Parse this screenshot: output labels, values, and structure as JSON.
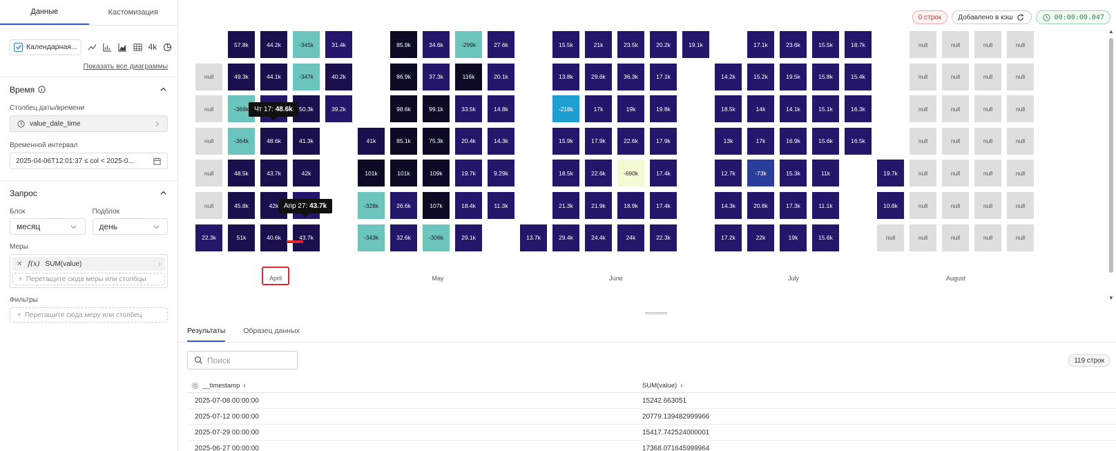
{
  "left": {
    "tabs": [
      "Данные",
      "Кастомизация"
    ],
    "chart_type_label": "Календарная...",
    "chart_icons": [
      "line-chart-icon",
      "bar-chart-icon",
      "area-chart-icon",
      "table-icon",
      "big-number-icon",
      "pie-chart-icon"
    ],
    "big_number_label": "4k",
    "show_all": "Показать все диаграммы",
    "time_section": "Время",
    "date_col_label": "Столбец даты/времени",
    "date_col_value": "value_date_time",
    "interval_label": "Временной интервал",
    "interval_value": "2025-04-06T12:01:37 ≤ col < 2025-0...",
    "query_section": "Запрос",
    "block_label": "Блок",
    "block_value": "месяц",
    "subblock_label": "Подблок",
    "subblock_value": "день",
    "measures_label": "Меры",
    "measure_item": "SUM(value)",
    "measure_fx": "f(x)",
    "measure_drop": "Перетащите сюда меры или столбцы",
    "filters_label": "Фильтры",
    "filters_drop": "Перетащите сюда меру или столбец"
  },
  "badges": {
    "rows": "0 строк",
    "cache": "Добавлено в кэш",
    "timer": "00:00:00.047"
  },
  "tooltips": [
    {
      "label": "Чт 17:",
      "value": "48.6k"
    },
    {
      "label": "Апр 27:",
      "value": "43.7k"
    }
  ],
  "chart_data": {
    "type": "heatmap",
    "months": [
      "April",
      "May",
      "June",
      "July",
      "August"
    ],
    "cells": [
      {
        "c": 1,
        "r": 0,
        "v": "57.8k"
      },
      {
        "c": 2,
        "r": 0,
        "v": "44.2k"
      },
      {
        "c": 3,
        "r": 0,
        "v": "-345k"
      },
      {
        "c": 4,
        "r": 0,
        "v": "31.4k"
      },
      {
        "c": 0,
        "r": 1,
        "v": "null"
      },
      {
        "c": 1,
        "r": 1,
        "v": "49.3k"
      },
      {
        "c": 2,
        "r": 1,
        "v": "44.1k"
      },
      {
        "c": 3,
        "r": 1,
        "v": "-347k"
      },
      {
        "c": 4,
        "r": 1,
        "v": "40.2k"
      },
      {
        "c": 0,
        "r": 2,
        "v": "null"
      },
      {
        "c": 1,
        "r": 2,
        "v": "-369k"
      },
      {
        "c": 2,
        "r": 2,
        "v": ""
      },
      {
        "c": 3,
        "r": 2,
        "v": "50.3k"
      },
      {
        "c": 4,
        "r": 2,
        "v": "39.2k"
      },
      {
        "c": 0,
        "r": 3,
        "v": "null"
      },
      {
        "c": 1,
        "r": 3,
        "v": "-364k"
      },
      {
        "c": 2,
        "r": 3,
        "v": "48.6k"
      },
      {
        "c": 3,
        "r": 3,
        "v": "41.3k"
      },
      {
        "c": 0,
        "r": 4,
        "v": "null"
      },
      {
        "c": 1,
        "r": 4,
        "v": "48.5k"
      },
      {
        "c": 2,
        "r": 4,
        "v": "43.7k"
      },
      {
        "c": 3,
        "r": 4,
        "v": "42k"
      },
      {
        "c": 0,
        "r": 5,
        "v": "null"
      },
      {
        "c": 1,
        "r": 5,
        "v": "45.8k"
      },
      {
        "c": 2,
        "r": 5,
        "v": "42k"
      },
      {
        "c": 3,
        "r": 5,
        "v": ""
      },
      {
        "c": 0,
        "r": 6,
        "v": "22.3k"
      },
      {
        "c": 1,
        "r": 6,
        "v": "51k"
      },
      {
        "c": 2,
        "r": 6,
        "v": "40.6k"
      },
      {
        "c": 3,
        "r": 6,
        "v": "43.7k"
      },
      {
        "c": 6,
        "r": 0,
        "v": "85.9k"
      },
      {
        "c": 7,
        "r": 0,
        "v": "34.6k"
      },
      {
        "c": 8,
        "r": 0,
        "v": "-299k"
      },
      {
        "c": 9,
        "r": 0,
        "v": "27.6k"
      },
      {
        "c": 6,
        "r": 1,
        "v": "86.9k"
      },
      {
        "c": 7,
        "r": 1,
        "v": "37.3k"
      },
      {
        "c": 8,
        "r": 1,
        "v": "116k"
      },
      {
        "c": 9,
        "r": 1,
        "v": "20.1k"
      },
      {
        "c": 6,
        "r": 2,
        "v": "98.6k"
      },
      {
        "c": 7,
        "r": 2,
        "v": "99.1k"
      },
      {
        "c": 8,
        "r": 2,
        "v": "33.5k"
      },
      {
        "c": 9,
        "r": 2,
        "v": "14.8k"
      },
      {
        "c": 5,
        "r": 3,
        "v": "41k"
      },
      {
        "c": 6,
        "r": 3,
        "v": "85.1k"
      },
      {
        "c": 7,
        "r": 3,
        "v": "75.3k"
      },
      {
        "c": 8,
        "r": 3,
        "v": "20.4k"
      },
      {
        "c": 9,
        "r": 3,
        "v": "14.3k"
      },
      {
        "c": 5,
        "r": 4,
        "v": "101k"
      },
      {
        "c": 6,
        "r": 4,
        "v": "101k"
      },
      {
        "c": 7,
        "r": 4,
        "v": "109k"
      },
      {
        "c": 8,
        "r": 4,
        "v": "19.7k"
      },
      {
        "c": 9,
        "r": 4,
        "v": "9.29k"
      },
      {
        "c": 5,
        "r": 5,
        "v": "-328k"
      },
      {
        "c": 6,
        "r": 5,
        "v": "26.6k"
      },
      {
        "c": 7,
        "r": 5,
        "v": "107k"
      },
      {
        "c": 8,
        "r": 5,
        "v": "18.4k"
      },
      {
        "c": 9,
        "r": 5,
        "v": "11.3k"
      },
      {
        "c": 5,
        "r": 6,
        "v": "-343k"
      },
      {
        "c": 6,
        "r": 6,
        "v": "32.6k"
      },
      {
        "c": 7,
        "r": 6,
        "v": "-306k"
      },
      {
        "c": 8,
        "r": 6,
        "v": "29.1k"
      },
      {
        "c": 11,
        "r": 0,
        "v": "15.5k"
      },
      {
        "c": 12,
        "r": 0,
        "v": "21k"
      },
      {
        "c": 13,
        "r": 0,
        "v": "23.5k"
      },
      {
        "c": 14,
        "r": 0,
        "v": "20.2k"
      },
      {
        "c": 15,
        "r": 0,
        "v": "19.1k"
      },
      {
        "c": 11,
        "r": 1,
        "v": "13.8k"
      },
      {
        "c": 12,
        "r": 1,
        "v": "29.6k"
      },
      {
        "c": 13,
        "r": 1,
        "v": "36.3k"
      },
      {
        "c": 14,
        "r": 1,
        "v": "17.1k"
      },
      {
        "c": 11,
        "r": 2,
        "v": "-218k"
      },
      {
        "c": 12,
        "r": 2,
        "v": "17k"
      },
      {
        "c": 13,
        "r": 2,
        "v": "19k"
      },
      {
        "c": 14,
        "r": 2,
        "v": "19.8k"
      },
      {
        "c": 11,
        "r": 3,
        "v": "15.9k"
      },
      {
        "c": 12,
        "r": 3,
        "v": "17.9k"
      },
      {
        "c": 13,
        "r": 3,
        "v": "22.6k"
      },
      {
        "c": 14,
        "r": 3,
        "v": "17.9k"
      },
      {
        "c": 11,
        "r": 4,
        "v": "18.5k"
      },
      {
        "c": 12,
        "r": 4,
        "v": "22.6k"
      },
      {
        "c": 13,
        "r": 4,
        "v": "-690k"
      },
      {
        "c": 14,
        "r": 4,
        "v": "17.4k"
      },
      {
        "c": 11,
        "r": 5,
        "v": "21.3k"
      },
      {
        "c": 12,
        "r": 5,
        "v": "21.9k"
      },
      {
        "c": 13,
        "r": 5,
        "v": "18.9k"
      },
      {
        "c": 14,
        "r": 5,
        "v": "17.4k"
      },
      {
        "c": 10,
        "r": 6,
        "v": "13.7k"
      },
      {
        "c": 11,
        "r": 6,
        "v": "29.4k"
      },
      {
        "c": 12,
        "r": 6,
        "v": "24.4k"
      },
      {
        "c": 13,
        "r": 6,
        "v": "24k"
      },
      {
        "c": 14,
        "r": 6,
        "v": "22.3k"
      },
      {
        "c": 17,
        "r": 0,
        "v": "17.1k"
      },
      {
        "c": 18,
        "r": 0,
        "v": "23.6k"
      },
      {
        "c": 19,
        "r": 0,
        "v": "15.5k"
      },
      {
        "c": 20,
        "r": 0,
        "v": "18.7k"
      },
      {
        "c": 16,
        "r": 1,
        "v": "14.2k"
      },
      {
        "c": 17,
        "r": 1,
        "v": "15.2k"
      },
      {
        "c": 18,
        "r": 1,
        "v": "19.5k"
      },
      {
        "c": 19,
        "r": 1,
        "v": "15.8k"
      },
      {
        "c": 20,
        "r": 1,
        "v": "15.4k"
      },
      {
        "c": 16,
        "r": 2,
        "v": "18.5k"
      },
      {
        "c": 17,
        "r": 2,
        "v": "14k"
      },
      {
        "c": 18,
        "r": 2,
        "v": "14.1k"
      },
      {
        "c": 19,
        "r": 2,
        "v": "15.1k"
      },
      {
        "c": 20,
        "r": 2,
        "v": "16.3k"
      },
      {
        "c": 16,
        "r": 3,
        "v": "13k"
      },
      {
        "c": 17,
        "r": 3,
        "v": "17k"
      },
      {
        "c": 18,
        "r": 3,
        "v": "16.9k"
      },
      {
        "c": 19,
        "r": 3,
        "v": "15.6k"
      },
      {
        "c": 20,
        "r": 3,
        "v": "16.5k"
      },
      {
        "c": 16,
        "r": 4,
        "v": "12.7k"
      },
      {
        "c": 17,
        "r": 4,
        "v": "-73k"
      },
      {
        "c": 18,
        "r": 4,
        "v": "15.3k"
      },
      {
        "c": 19,
        "r": 4,
        "v": "11k"
      },
      {
        "c": 16,
        "r": 5,
        "v": "14.3k"
      },
      {
        "c": 17,
        "r": 5,
        "v": "20.8k"
      },
      {
        "c": 18,
        "r": 5,
        "v": "17.3k"
      },
      {
        "c": 19,
        "r": 5,
        "v": "11.1k"
      },
      {
        "c": 16,
        "r": 6,
        "v": "17.2k"
      },
      {
        "c": 17,
        "r": 6,
        "v": "22k"
      },
      {
        "c": 18,
        "r": 6,
        "v": "19k"
      },
      {
        "c": 19,
        "r": 6,
        "v": "15.6k"
      },
      {
        "c": 22,
        "r": 0,
        "v": "null"
      },
      {
        "c": 23,
        "r": 0,
        "v": "null"
      },
      {
        "c": 24,
        "r": 0,
        "v": "null"
      },
      {
        "c": 25,
        "r": 0,
        "v": "null"
      },
      {
        "c": 22,
        "r": 1,
        "v": "null"
      },
      {
        "c": 23,
        "r": 1,
        "v": "null"
      },
      {
        "c": 24,
        "r": 1,
        "v": "null"
      },
      {
        "c": 25,
        "r": 1,
        "v": "null"
      },
      {
        "c": 22,
        "r": 2,
        "v": "null"
      },
      {
        "c": 23,
        "r": 2,
        "v": "null"
      },
      {
        "c": 24,
        "r": 2,
        "v": "null"
      },
      {
        "c": 25,
        "r": 2,
        "v": "null"
      },
      {
        "c": 22,
        "r": 3,
        "v": "null"
      },
      {
        "c": 23,
        "r": 3,
        "v": "null"
      },
      {
        "c": 24,
        "r": 3,
        "v": "null"
      },
      {
        "c": 25,
        "r": 3,
        "v": "null"
      },
      {
        "c": 21,
        "r": 4,
        "v": "19.7k"
      },
      {
        "c": 22,
        "r": 4,
        "v": "null"
      },
      {
        "c": 23,
        "r": 4,
        "v": "null"
      },
      {
        "c": 24,
        "r": 4,
        "v": "null"
      },
      {
        "c": 25,
        "r": 4,
        "v": "null"
      },
      {
        "c": 21,
        "r": 5,
        "v": "10.8k"
      },
      {
        "c": 22,
        "r": 5,
        "v": "null"
      },
      {
        "c": 23,
        "r": 5,
        "v": "null"
      },
      {
        "c": 24,
        "r": 5,
        "v": "null"
      },
      {
        "c": 25,
        "r": 5,
        "v": "null"
      },
      {
        "c": 21,
        "r": 6,
        "v": "null"
      },
      {
        "c": 22,
        "r": 6,
        "v": "null"
      },
      {
        "c": 23,
        "r": 6,
        "v": "null"
      },
      {
        "c": 24,
        "r": 6,
        "v": "null"
      },
      {
        "c": 25,
        "r": 6,
        "v": "null"
      }
    ],
    "colors": {
      "very_dark": "#0c0a24",
      "dark": "#1b0f4e",
      "mid": "#24166a",
      "negative_light": "#6bc5bd",
      "negative_mid": "#1f9fcf",
      "negative_blue": "#2a3d98",
      "extreme": "#f5fad2",
      "null": "#dedede"
    }
  },
  "results": {
    "tabs": [
      "Результаты",
      "Образец данных"
    ],
    "search_placeholder": "Поиск",
    "count": "119 строк",
    "columns": [
      "__timestamp",
      "SUM(value)"
    ],
    "rows": [
      [
        "2025-07-08 00:00:00",
        "15242.663051"
      ],
      [
        "2025-07-12 00:00:00",
        "20779.139482999966"
      ],
      [
        "2025-07-29 00:00:00",
        "15417.742524000001"
      ],
      [
        "2025-06-27 00:00:00",
        "17368.071645999964"
      ]
    ]
  }
}
